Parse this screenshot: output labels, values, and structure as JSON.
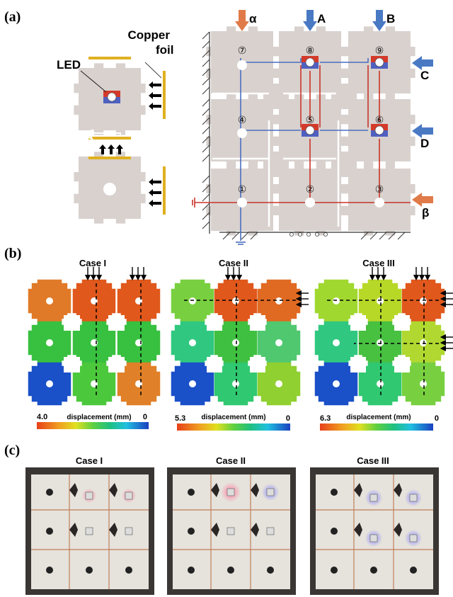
{
  "panels": {
    "a": "(a)",
    "b": "(b)",
    "c": "(c)"
  },
  "a": {
    "copper_line1": "Copper",
    "copper_line2": "foil",
    "led": "LED",
    "nodes": [
      "⑦",
      "⑧",
      "⑨",
      "④",
      "⑤",
      "⑥",
      "①",
      "②",
      "③"
    ],
    "inputs": {
      "alpha": "α",
      "A": "A",
      "B": "B",
      "C": "C",
      "D": "D",
      "beta": "β"
    }
  },
  "b": {
    "cases": [
      {
        "title": "Case I",
        "cb_max": "4.0",
        "cb_min": "0",
        "cb_label": "displacement (mm)"
      },
      {
        "title": "Case II",
        "cb_max": "5.3",
        "cb_min": "0",
        "cb_label": "displacement (mm)"
      },
      {
        "title": "Case III",
        "cb_max": "6.3",
        "cb_min": "0",
        "cb_label": "displacement (mm)"
      }
    ]
  },
  "c": {
    "titles": [
      "Case I",
      "Case II",
      "Case III"
    ]
  },
  "colors": {
    "block": "#d8d1ce",
    "wire_blue": "#4a6fc0",
    "wire_red": "#c8342a",
    "arrow_blue": "#4a79c4",
    "arrow_orange": "#e07a48",
    "copper": "#e0b020"
  }
}
